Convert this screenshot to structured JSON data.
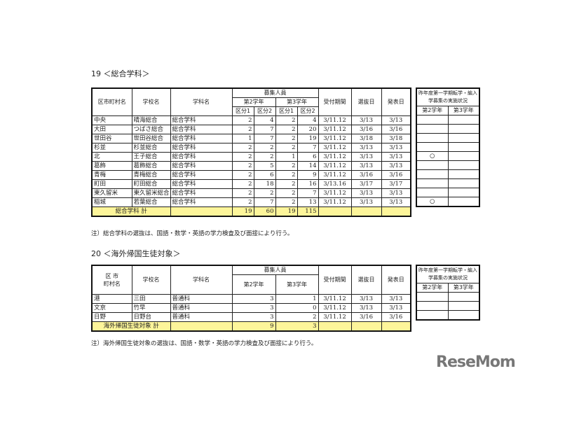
{
  "section19": {
    "title": "19 ＜総合学科＞",
    "headers": {
      "district": "区市町村名",
      "school": "学校名",
      "course": "学科名",
      "recruit": "募集人員",
      "grade2": "第2学年",
      "grade3": "第3学年",
      "k1": "区分1",
      "k2": "区分2",
      "period": "受付期間",
      "selection": "選抜日",
      "announce": "発表日"
    },
    "rows": [
      [
        "中央",
        "晴海総合",
        "総合学科",
        "2",
        "4",
        "2",
        "4",
        "3/11.12",
        "3/13",
        "3/13"
      ],
      [
        "大田",
        "つばさ総合",
        "総合学科",
        "2",
        "7",
        "2",
        "20",
        "3/11.12",
        "3/16",
        "3/16"
      ],
      [
        "世田谷",
        "世田谷総合",
        "総合学科",
        "1",
        "7",
        "2",
        "19",
        "3/11.12",
        "3/18",
        "3/18"
      ],
      [
        "杉並",
        "杉並総合",
        "総合学科",
        "2",
        "2",
        "2",
        "7",
        "3/11.12",
        "3/13",
        "3/13"
      ],
      [
        "北",
        "王子総合",
        "総合学科",
        "2",
        "2",
        "1",
        "6",
        "3/11.12",
        "3/13",
        "3/13"
      ],
      [
        "葛飾",
        "葛飾総合",
        "総合学科",
        "2",
        "5",
        "2",
        "14",
        "3/11.12",
        "3/13",
        "3/13"
      ],
      [
        "青梅",
        "青梅総合",
        "総合学科",
        "2",
        "6",
        "2",
        "9",
        "3/11.12",
        "3/16",
        "3/16"
      ],
      [
        "町田",
        "町田総合",
        "総合学科",
        "2",
        "18",
        "2",
        "16",
        "3/13.16",
        "3/17",
        "3/17"
      ],
      [
        "東久留米",
        "東久留米総合",
        "総合学科",
        "2",
        "2",
        "2",
        "7",
        "3/11.12",
        "3/13",
        "3/13"
      ],
      [
        "稲城",
        "若葉総合",
        "総合学科",
        "2",
        "7",
        "2",
        "13",
        "3/11.12",
        "3/13",
        "3/13"
      ]
    ],
    "total": {
      "label": "総合学科 計",
      "values": [
        "19",
        "60",
        "19",
        "115"
      ]
    },
    "side": {
      "header": "昨年度第一学期転学・編入学募集の実施状況",
      "grade2": "第2学年",
      "grade3": "第3学年",
      "rows": [
        [
          "",
          ""
        ],
        [
          "",
          ""
        ],
        [
          "",
          ""
        ],
        [
          "",
          ""
        ],
        [
          "○",
          ""
        ],
        [
          "",
          ""
        ],
        [
          "",
          ""
        ],
        [
          "",
          ""
        ],
        [
          "",
          ""
        ],
        [
          "○",
          ""
        ]
      ]
    },
    "note": "注）総合学科の選抜は、国語・数学・英語の学力検査及び面接により行う。"
  },
  "section20": {
    "title": "20 ＜海外帰国生徒対象＞",
    "headers": {
      "district": "区 市\n町村名",
      "school": "学校名",
      "course": "学科名",
      "recruit": "募集人員",
      "grade2": "第2学年",
      "grade3": "第3学年",
      "period": "受付期間",
      "selection": "選抜日",
      "announce": "発表日"
    },
    "rows": [
      [
        "港",
        "三田",
        "普通科",
        "3",
        "1",
        "3/11.12",
        "3/13",
        "3/13"
      ],
      [
        "文京",
        "竹早",
        "普通科",
        "3",
        "0",
        "3/11.12",
        "3/13",
        "3/13"
      ],
      [
        "日野",
        "日野台",
        "普通科",
        "3",
        "2",
        "3/11.12",
        "3/16",
        "3/16"
      ]
    ],
    "total": {
      "label": "海外帰国生徒対象 計",
      "values": [
        "9",
        "3"
      ]
    },
    "side": {
      "header": "昨年度第一学期転学・編入学募集の実施状況",
      "grade2": "第2学年",
      "grade3": "第3学年",
      "rows": [
        [
          "",
          ""
        ],
        [
          "",
          ""
        ],
        [
          "",
          ""
        ]
      ]
    },
    "note": "注）海外帰国生徒対象の選抜は、国語・数学・英語の学力検査及び面接により行う。"
  },
  "logo": {
    "text": "ReseMom",
    "accent": "#777777"
  }
}
